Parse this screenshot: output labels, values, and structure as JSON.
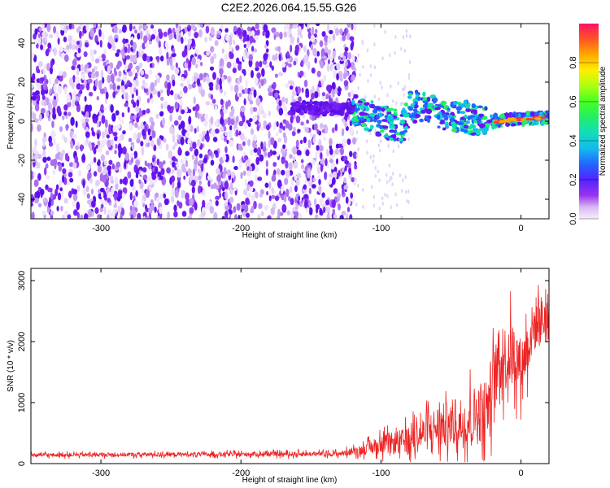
{
  "title": "C2E2.2026.064.15.55.G26",
  "chart_data": [
    {
      "type": "heatmap",
      "name": "spectrogram",
      "xlabel": "Height of straight line (km)",
      "ylabel": "Frequency (Hz)",
      "xlim": [
        -350,
        20
      ],
      "ylim": [
        -50,
        50
      ],
      "xticks": [
        -300,
        -200,
        -100,
        0
      ],
      "yticks": [
        -40,
        -20,
        0,
        20,
        40
      ],
      "colorbar": {
        "label": "Normalized spectral amplitude",
        "range": [
          0,
          1
        ],
        "ticks": [
          0.0,
          0.2,
          0.4,
          0.6,
          0.8
        ]
      },
      "features": {
        "noise_region_x": [
          -350,
          -118
        ],
        "signal_track": [
          {
            "x": -165,
            "freq": 7
          },
          {
            "x": -120,
            "freq": 6
          },
          {
            "x": -100,
            "freq": 0
          },
          {
            "x": -85,
            "freq": -3
          },
          {
            "x": -78,
            "freq": 8
          },
          {
            "x": -50,
            "freq": 3
          },
          {
            "x": -20,
            "freq": 0
          },
          {
            "x": 0,
            "freq": 1
          },
          {
            "x": 20,
            "freq": 2
          }
        ]
      }
    },
    {
      "type": "line",
      "name": "snr",
      "xlabel": "Height of straight line (km)",
      "ylabel": "SNR (10 * v/v)",
      "xlim": [
        -350,
        20
      ],
      "ylim": [
        0,
        3200
      ],
      "xticks": [
        -300,
        -200,
        -100,
        0
      ],
      "yticks": [
        0,
        1000,
        2000,
        3000
      ],
      "series_color": "#ee2222",
      "envelope": [
        {
          "x": -350,
          "base": 140,
          "spread": 60
        },
        {
          "x": -130,
          "base": 160,
          "spread": 80
        },
        {
          "x": -115,
          "base": 220,
          "spread": 150
        },
        {
          "x": -100,
          "base": 300,
          "spread": 300
        },
        {
          "x": -80,
          "base": 380,
          "spread": 450
        },
        {
          "x": -60,
          "base": 600,
          "spread": 700
        },
        {
          "x": -40,
          "base": 700,
          "spread": 900
        },
        {
          "x": -25,
          "base": 900,
          "spread": 1100
        },
        {
          "x": -15,
          "base": 1700,
          "spread": 1100
        },
        {
          "x": -5,
          "base": 1800,
          "spread": 1100
        },
        {
          "x": 0,
          "base": 1600,
          "spread": 900
        },
        {
          "x": 10,
          "base": 2300,
          "spread": 900
        },
        {
          "x": 20,
          "base": 2400,
          "spread": 800
        }
      ]
    }
  ]
}
